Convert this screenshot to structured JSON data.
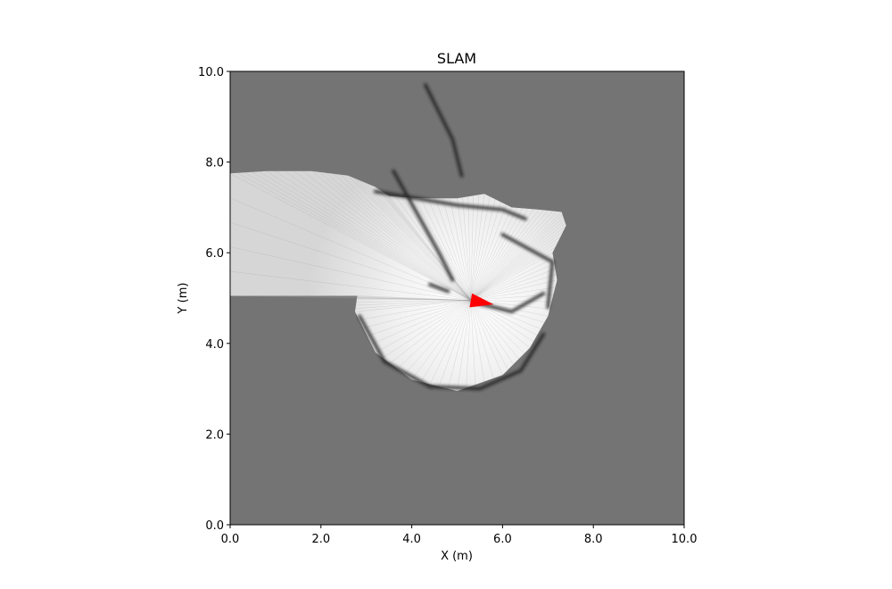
{
  "chart_data": {
    "type": "heatmap",
    "title": "SLAM",
    "xlabel": "X (m)",
    "ylabel": "Y (m)",
    "xlim": [
      0.0,
      10.0
    ],
    "ylim": [
      0.0,
      10.0
    ],
    "xticks": [
      "0.0",
      "2.0",
      "4.0",
      "6.0",
      "8.0",
      "10.0"
    ],
    "yticks": [
      "0.0",
      "2.0",
      "4.0",
      "6.0",
      "8.0",
      "10.0"
    ],
    "grid": false,
    "colormap": "gray",
    "colors": {
      "unknown": "#747474",
      "free": "#ffffff",
      "occupied": "#1e1e1e",
      "robot": "#ff0000"
    },
    "robot_pose": {
      "x": 5.3,
      "y": 4.95,
      "heading_deg": -10
    },
    "scan_region_outline": [
      [
        0.0,
        7.75
      ],
      [
        0.8,
        7.8
      ],
      [
        1.8,
        7.8
      ],
      [
        2.6,
        7.7
      ],
      [
        3.2,
        7.45
      ],
      [
        3.5,
        7.25
      ],
      [
        4.2,
        7.2
      ],
      [
        5.0,
        7.2
      ],
      [
        5.6,
        7.3
      ],
      [
        6.2,
        7.0
      ],
      [
        6.8,
        6.95
      ],
      [
        7.3,
        6.9
      ],
      [
        7.4,
        6.6
      ],
      [
        7.1,
        6.0
      ],
      [
        7.2,
        5.4
      ],
      [
        7.0,
        4.6
      ],
      [
        6.6,
        3.9
      ],
      [
        6.0,
        3.3
      ],
      [
        5.0,
        2.95
      ],
      [
        4.0,
        3.2
      ],
      [
        3.2,
        3.8
      ],
      [
        2.75,
        4.7
      ],
      [
        2.8,
        5.05
      ],
      [
        0.0,
        5.05
      ]
    ],
    "occupied_segments": [
      [
        [
          3.2,
          7.35
        ],
        [
          5.0,
          7.05
        ],
        [
          6.0,
          6.95
        ],
        [
          6.5,
          6.75
        ]
      ],
      [
        [
          6.0,
          6.4
        ],
        [
          7.1,
          5.8
        ],
        [
          7.0,
          4.8
        ]
      ],
      [
        [
          4.3,
          9.7
        ],
        [
          4.9,
          8.5
        ],
        [
          5.1,
          7.7
        ]
      ],
      [
        [
          3.6,
          7.8
        ],
        [
          4.6,
          6.0
        ],
        [
          4.9,
          5.4
        ]
      ],
      [
        [
          2.85,
          4.6
        ],
        [
          3.4,
          3.6
        ],
        [
          4.4,
          3.05
        ],
        [
          5.5,
          3.0
        ],
        [
          6.4,
          3.4
        ],
        [
          6.9,
          4.2
        ]
      ],
      [
        [
          5.4,
          4.9
        ],
        [
          6.2,
          4.7
        ],
        [
          6.9,
          5.1
        ]
      ],
      [
        [
          4.4,
          5.3
        ],
        [
          4.8,
          5.15
        ]
      ]
    ]
  }
}
